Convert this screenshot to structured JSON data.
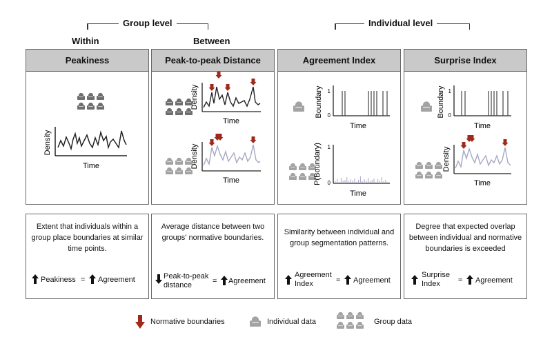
{
  "header": {
    "group_level": "Group level",
    "within": "Within",
    "between": "Between",
    "individual_level": "Individual level"
  },
  "panels": [
    {
      "title": "Peakiness",
      "ylabel": "Density",
      "xlabel": "Time"
    },
    {
      "title": "Peak-to-peak Distance",
      "ylabel_top": "Density",
      "xlabel_top": "Time",
      "ylabel_bottom": "Density",
      "xlabel_bottom": "Time"
    },
    {
      "title": "Agreement Index",
      "ylabel_top": "Boundary",
      "xlabel_top": "Time",
      "ylabel_bottom": "P(Boundary)",
      "xlabel_bottom": "Time",
      "tick_one": "1",
      "tick_zero": "0"
    },
    {
      "title": "Surprise Index",
      "ylabel_top": "Boundary",
      "xlabel_top": "Time",
      "ylabel_bottom": "Density",
      "xlabel_bottom": "Time",
      "tick_one": "1",
      "tick_zero": "0"
    }
  ],
  "descriptions": [
    {
      "text": "Extent that individuals within a group place boundaries at similar time points.",
      "left": "Peakiness",
      "eq": "=",
      "right": "Agreement"
    },
    {
      "text": "Average distance between two groups' normative boundaries.",
      "left_line1": "Peak-to-peak",
      "left_line2": "distance",
      "eq": "=",
      "right": "Agreement"
    },
    {
      "text": "Similarity between individual and group segmentation patterns.",
      "left_line1": "Agreement",
      "left_line2": "Index",
      "eq": "=",
      "right": "Agreement"
    },
    {
      "text": "Degree that expected overlap between individual and normative boundaries is exceeded",
      "left_line1": "Surprise",
      "left_line2": "Index",
      "eq": "=",
      "right": "Agreement"
    }
  ],
  "legend": {
    "normative": "Normative boundaries",
    "individual": "Individual data",
    "group": "Group data"
  },
  "colors": {
    "header_fill": "#c9c9c9",
    "normative_arrow": "#a0291c",
    "group_icon": "#6e6e6e",
    "group_icon_light": "#a3a3a3",
    "density_line": "#222222",
    "density_light": "#a7a7c4"
  }
}
